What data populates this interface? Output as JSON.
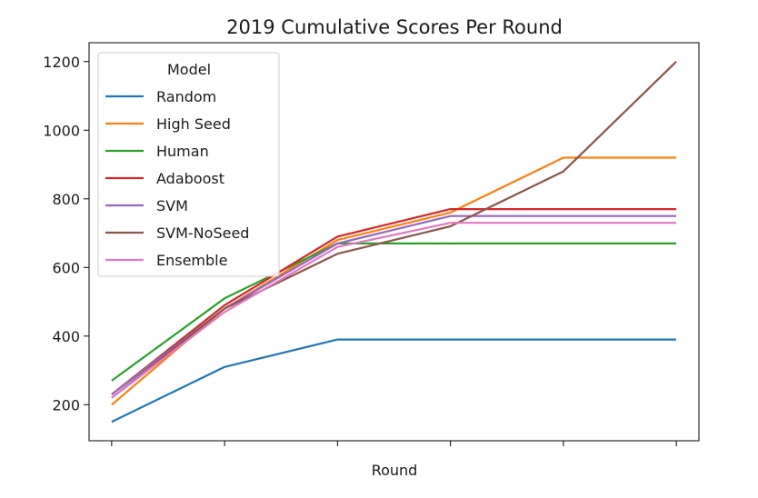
{
  "chart_data": {
    "type": "line",
    "title": "2019 Cumulative Scores Per Round",
    "xlabel": "Round",
    "ylabel": "",
    "x": [
      1,
      2,
      3,
      4,
      5,
      6
    ],
    "xlim": [
      0.8,
      6.2
    ],
    "ylim": [
      95,
      1255
    ],
    "yticks": [
      200,
      400,
      600,
      800,
      1000,
      1200
    ],
    "grid": false,
    "legend": {
      "title": "Model",
      "placement": "top-left"
    },
    "series": [
      {
        "name": "Random",
        "color": "#1f77b4",
        "values": [
          150,
          310,
          390,
          390,
          390,
          390
        ]
      },
      {
        "name": "High Seed",
        "color": "#ff7f0e",
        "values": [
          200,
          480,
          680,
          760,
          920,
          920
        ]
      },
      {
        "name": "Human",
        "color": "#2ca02c",
        "values": [
          270,
          510,
          670,
          670,
          670,
          670
        ]
      },
      {
        "name": "Adaboost",
        "color": "#d62728",
        "values": [
          230,
          490,
          690,
          770,
          770,
          770
        ]
      },
      {
        "name": "SVM",
        "color": "#9467bd",
        "values": [
          230,
          480,
          670,
          750,
          750,
          750
        ]
      },
      {
        "name": "SVM-NoSeed",
        "color": "#8c564b",
        "values": [
          220,
          480,
          640,
          720,
          880,
          1200
        ]
      },
      {
        "name": "Ensemble",
        "color": "#e377c2",
        "values": [
          220,
          470,
          660,
          730,
          730,
          730
        ]
      }
    ]
  }
}
